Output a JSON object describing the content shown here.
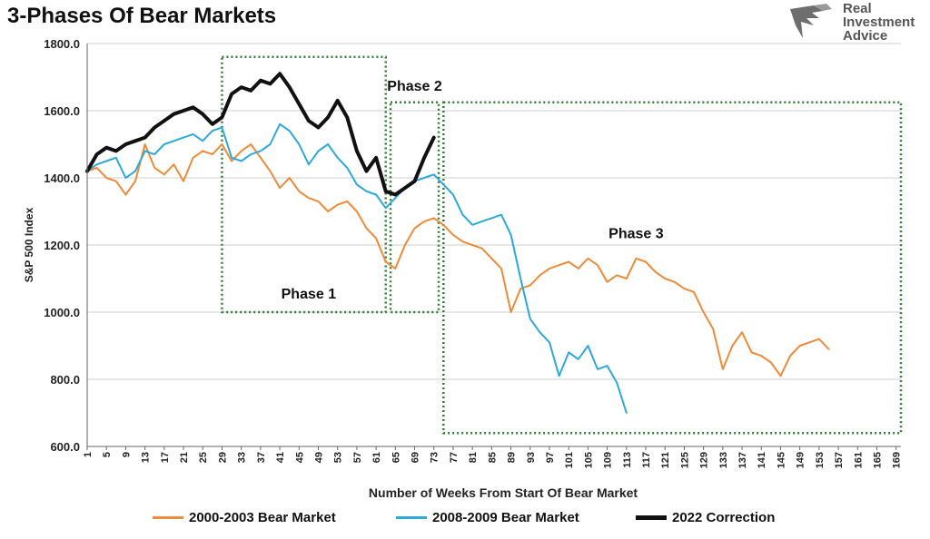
{
  "header": {
    "title": "3-Phases Of Bear Markets",
    "logo_lines": [
      "Real",
      "Investment",
      "Advice"
    ]
  },
  "chart_data": {
    "type": "line",
    "ylabel": "S&P 500 Index",
    "xlabel": "Number of Weeks From Start Of Bear Market",
    "ylim": [
      600,
      1800
    ],
    "yticks": [
      600,
      800,
      1000,
      1200,
      1400,
      1600,
      1800
    ],
    "ytick_labels": [
      "600.0",
      "800.0",
      "1000.0",
      "1200.0",
      "1400.0",
      "1600.0",
      "1800.0"
    ],
    "xlim": [
      1,
      170
    ],
    "xticks": [
      1,
      5,
      9,
      13,
      17,
      21,
      25,
      29,
      33,
      37,
      41,
      45,
      49,
      53,
      57,
      61,
      65,
      69,
      73,
      77,
      81,
      85,
      89,
      93,
      97,
      101,
      105,
      109,
      113,
      117,
      121,
      125,
      129,
      133,
      137,
      141,
      145,
      149,
      153,
      157,
      161,
      165,
      169
    ],
    "grid": "horizontal",
    "legend_position": "bottom",
    "series": [
      {
        "name": "2000-2003 Bear Market",
        "color": "#ED8B3A",
        "width": 2,
        "x": [
          1,
          3,
          5,
          7,
          9,
          11,
          13,
          15,
          17,
          19,
          21,
          23,
          25,
          27,
          29,
          31,
          33,
          35,
          37,
          39,
          41,
          43,
          45,
          47,
          49,
          51,
          53,
          55,
          57,
          59,
          61,
          63,
          65,
          67,
          69,
          71,
          73,
          75,
          77,
          79,
          81,
          83,
          85,
          87,
          89,
          91,
          93,
          95,
          97,
          99,
          101,
          103,
          105,
          107,
          109,
          111,
          113,
          115,
          117,
          119,
          121,
          123,
          125,
          127,
          129,
          131,
          133,
          135,
          137,
          139,
          141,
          143,
          145,
          147,
          149,
          151,
          153,
          155
        ],
        "values": [
          1420,
          1430,
          1400,
          1390,
          1350,
          1390,
          1500,
          1430,
          1410,
          1440,
          1390,
          1460,
          1480,
          1470,
          1500,
          1450,
          1480,
          1500,
          1460,
          1420,
          1370,
          1400,
          1360,
          1340,
          1330,
          1300,
          1320,
          1330,
          1300,
          1250,
          1220,
          1150,
          1130,
          1200,
          1250,
          1270,
          1280,
          1260,
          1230,
          1210,
          1200,
          1190,
          1160,
          1130,
          1000,
          1070,
          1080,
          1110,
          1130,
          1140,
          1150,
          1130,
          1160,
          1140,
          1090,
          1110,
          1100,
          1160,
          1150,
          1120,
          1100,
          1090,
          1070,
          1060,
          1000,
          950,
          830,
          900,
          940,
          880,
          870,
          850,
          810,
          870,
          900,
          910,
          920,
          890
        ]
      },
      {
        "name": "2008-2009 Bear Market",
        "color": "#2DA8D8",
        "width": 2,
        "x": [
          1,
          3,
          5,
          7,
          9,
          11,
          13,
          15,
          17,
          19,
          21,
          23,
          25,
          27,
          29,
          31,
          33,
          35,
          37,
          39,
          41,
          43,
          45,
          47,
          49,
          51,
          53,
          55,
          57,
          59,
          61,
          63,
          65,
          67,
          69,
          71,
          73,
          75,
          77,
          79,
          81,
          83,
          85,
          87,
          89,
          91,
          93,
          95,
          97,
          99,
          101,
          103,
          105,
          107,
          109,
          111,
          113
        ],
        "values": [
          1420,
          1440,
          1450,
          1460,
          1400,
          1420,
          1480,
          1470,
          1500,
          1510,
          1520,
          1530,
          1510,
          1540,
          1550,
          1460,
          1450,
          1470,
          1480,
          1500,
          1560,
          1540,
          1500,
          1440,
          1480,
          1500,
          1460,
          1430,
          1380,
          1360,
          1350,
          1310,
          1340,
          1370,
          1390,
          1400,
          1410,
          1380,
          1350,
          1290,
          1260,
          1270,
          1280,
          1290,
          1230,
          1100,
          980,
          940,
          910,
          810,
          880,
          860,
          900,
          830,
          840,
          790,
          700
        ]
      },
      {
        "name": "2022 Correction",
        "color": "#111111",
        "width": 4,
        "x": [
          1,
          3,
          5,
          7,
          9,
          11,
          13,
          15,
          17,
          19,
          21,
          23,
          25,
          27,
          29,
          31,
          33,
          35,
          37,
          39,
          41,
          43,
          45,
          47,
          49,
          51,
          53,
          55,
          57,
          59,
          61,
          63,
          65,
          67,
          69,
          71,
          73
        ],
        "values": [
          1420,
          1470,
          1490,
          1480,
          1500,
          1510,
          1520,
          1550,
          1570,
          1590,
          1600,
          1610,
          1590,
          1560,
          1580,
          1650,
          1670,
          1660,
          1690,
          1680,
          1710,
          1670,
          1620,
          1570,
          1550,
          1580,
          1630,
          1580,
          1480,
          1420,
          1460,
          1360,
          1350,
          1370,
          1390,
          1460,
          1520
        ]
      }
    ],
    "annotations": [
      {
        "label": "Phase 1",
        "x_range": [
          29,
          63
        ],
        "y_range": [
          1000,
          1760
        ]
      },
      {
        "label": "Phase 2",
        "x_range": [
          64,
          74
        ],
        "y_range": [
          1000,
          1625
        ]
      },
      {
        "label": "Phase 3",
        "x_range": [
          75,
          170
        ],
        "y_range": [
          640,
          1625
        ]
      }
    ]
  }
}
